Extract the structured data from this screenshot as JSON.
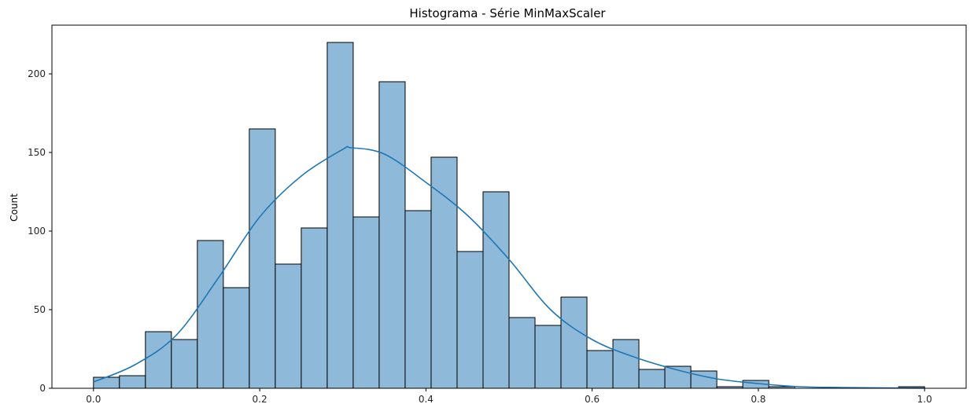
{
  "chart_data": {
    "type": "bar",
    "subtype": "histogram",
    "title": "Histograma - Série MinMaxScaler",
    "xlabel": "",
    "ylabel": "Count",
    "xlim": [
      -0.05,
      1.05
    ],
    "ylim": [
      0,
      231
    ],
    "x_ticks": [
      0.0,
      0.2,
      0.4,
      0.6,
      0.8,
      1.0
    ],
    "x_tick_labels": [
      "0.0",
      "0.2",
      "0.4",
      "0.6",
      "0.8",
      "1.0"
    ],
    "y_ticks": [
      0,
      50,
      100,
      150,
      200
    ],
    "y_tick_labels": [
      "0",
      "50",
      "100",
      "150",
      "200"
    ],
    "bin_width": 0.03125,
    "bin_start": 0.0,
    "counts": [
      7,
      8,
      36,
      31,
      94,
      64,
      165,
      79,
      102,
      220,
      109,
      195,
      113,
      147,
      87,
      125,
      45,
      40,
      58,
      24,
      31,
      12,
      14,
      11,
      1,
      5,
      1,
      0,
      0,
      0,
      0,
      1
    ],
    "kde": {
      "x": [
        0.0,
        0.05,
        0.1,
        0.15,
        0.2,
        0.25,
        0.3,
        0.31,
        0.35,
        0.4,
        0.45,
        0.5,
        0.55,
        0.6,
        0.65,
        0.7,
        0.75,
        0.8,
        0.85,
        0.9,
        0.95,
        1.0
      ],
      "y": [
        4,
        15,
        34,
        70,
        109,
        135,
        152,
        153,
        149,
        131,
        110,
        82,
        50,
        31,
        20,
        12,
        6,
        3,
        1,
        0.5,
        0.2,
        0.1
      ]
    },
    "grid": false,
    "colors": {
      "bar_fill": "#8fb9d9",
      "bar_edge": "#000000",
      "kde_line": "#1f77b4",
      "axes": "#000000"
    }
  }
}
